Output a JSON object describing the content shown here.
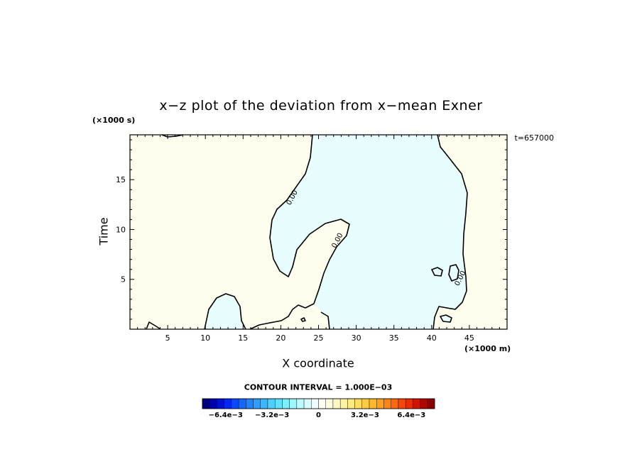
{
  "chart_data": {
    "type": "contour",
    "title": "x−z plot of the deviation from x−mean Exner",
    "xlabel": "X coordinate",
    "ylabel": "Time",
    "x_unit": "(×1000 m)",
    "y_unit": "(×1000 s)",
    "time_label": "t=657000",
    "xlim": [
      0,
      50
    ],
    "ylim": [
      0,
      19.5
    ],
    "x_ticks": [
      5,
      10,
      15,
      20,
      25,
      30,
      35,
      40,
      45
    ],
    "y_ticks": [
      5,
      10,
      15
    ],
    "contour_interval": "CONTOUR INTERVAL = 1.000E−03",
    "contour_labels": [
      {
        "text": "0.00",
        "x": 21.5,
        "y": 13.2
      },
      {
        "text": "0.00",
        "x": 27.5,
        "y": 8.9
      },
      {
        "text": "0.00",
        "x": 43.8,
        "y": 5.1
      }
    ],
    "colors": {
      "positive_fill": "#fffdee",
      "negative_fill": "#e8fdfd",
      "line": "#000000"
    },
    "colorbar": {
      "min": -0.008,
      "max": 0.008,
      "levels": 32,
      "tick_labels": [
        "−6.4e−3",
        "−3.2e−3",
        "0",
        "3.2e−3",
        "6.4e−3"
      ],
      "tick_values": [
        -0.0064,
        -0.0032,
        0,
        0.0032,
        0.0064
      ],
      "colors": [
        "#00007a",
        "#0000a8",
        "#0010d0",
        "#0028f0",
        "#0a48ff",
        "#1466ff",
        "#2084ff",
        "#2e9eff",
        "#3cb8ff",
        "#4ed0ff",
        "#62e2ff",
        "#7eeeff",
        "#9ef6ff",
        "#bcfbff",
        "#d8fdff",
        "#eefeff",
        "#fffef2",
        "#fffce0",
        "#fff8c4",
        "#fff2a4",
        "#ffea84",
        "#ffdc62",
        "#ffcc44",
        "#ffb82e",
        "#ffa020",
        "#ff8416",
        "#ff660e",
        "#f84808",
        "#e82c04",
        "#d01402",
        "#b00600",
        "#8a0000"
      ]
    }
  }
}
